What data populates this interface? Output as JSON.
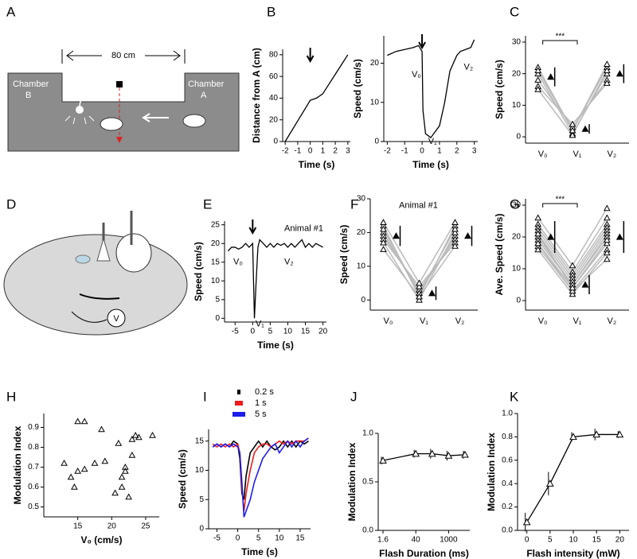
{
  "panel_labels": [
    "A",
    "B",
    "C",
    "D",
    "E",
    "F",
    "G",
    "H",
    "I",
    "J",
    "K"
  ],
  "diagram_a": {
    "distance": "80 cm",
    "chamber_b": [
      "Chamber",
      "B"
    ],
    "chamber_a": [
      "Chamber",
      "A"
    ]
  },
  "diagram_d": {
    "meter": "V"
  },
  "chart_data": [
    {
      "type": "line",
      "x_label": "Time (s)",
      "y_label": "Distance from A (cm)",
      "arrow_at": 0,
      "x": [
        -2,
        -1,
        0,
        0.5,
        1,
        1.5,
        2,
        2.5,
        3
      ],
      "values": [
        0,
        19,
        38,
        40,
        44,
        53,
        62,
        71,
        80
      ],
      "color": "#000000",
      "xlim": [
        -2.2,
        3.2
      ],
      "xticks": [
        -2,
        -1,
        0,
        1,
        2,
        3
      ],
      "ylim": [
        0,
        85
      ],
      "yticks": [
        0,
        20,
        40,
        60,
        80
      ]
    },
    {
      "type": "line",
      "x_label": "Time (s)",
      "y_label": "Speed (cm/s)",
      "arrow_at": 0,
      "annotations": [
        "V₀",
        "V₁",
        "V₂"
      ],
      "x": [
        -2,
        -1.5,
        -1,
        -0.5,
        -0.2,
        0,
        0.05,
        0.2,
        0.5,
        1,
        1.3,
        1.6,
        2,
        2.2,
        2.5,
        2.8,
        3
      ],
      "values": [
        22,
        23,
        23.5,
        24,
        24.5,
        23,
        8,
        2,
        1,
        4,
        10,
        18,
        22,
        23,
        23.5,
        24,
        26
      ],
      "color": "#000000",
      "xlim": [
        -2.2,
        3.2
      ],
      "xticks": [
        -2,
        -1,
        0,
        1,
        2,
        3
      ],
      "ylim": [
        0,
        27
      ],
      "yticks": [
        0,
        10,
        20
      ]
    },
    {
      "type": "dotplot",
      "y_label": "Speed (cm/s)",
      "significance": "***",
      "categories": [
        "V₀",
        "V₁",
        "V₂"
      ],
      "series": [
        {
          "values": [
            22,
            2,
            22
          ]
        },
        {
          "values": [
            20,
            1,
            20
          ]
        },
        {
          "values": [
            18,
            3,
            18
          ]
        },
        {
          "values": [
            16,
            4,
            17
          ]
        },
        {
          "values": [
            15,
            0.5,
            21
          ]
        },
        {
          "values": [
            21,
            2,
            23
          ]
        }
      ],
      "mean": [
        19,
        2.5,
        20
      ],
      "error": [
        3,
        1.5,
        3
      ],
      "color": "#000000",
      "line_color": "#bbbbbb",
      "ylim": [
        -2,
        32
      ],
      "yticks": [
        0,
        10,
        20,
        30
      ]
    },
    {
      "type": "line",
      "x_label": "Time (s)",
      "y_label": "Speed (cm/s)",
      "arrow_at": 0,
      "annotations": [
        "Animal #1",
        "V₀",
        "V₁",
        "V₂"
      ],
      "x": [
        -7,
        -6,
        -5,
        -4,
        -3,
        -2,
        -1,
        0,
        0.5,
        1,
        1.5,
        2,
        3,
        4,
        5,
        6,
        7,
        8,
        9,
        10,
        11,
        12,
        13,
        14,
        15,
        16,
        17,
        18,
        19,
        20
      ],
      "values": [
        18,
        19,
        19,
        18.5,
        19,
        20,
        19,
        20,
        0,
        10,
        19,
        21,
        20,
        19,
        20,
        19,
        20,
        19.5,
        20,
        19,
        20,
        19,
        20,
        21,
        19,
        20,
        19,
        20,
        19.5,
        19
      ],
      "color": "#000000",
      "xlim": [
        -8,
        21
      ],
      "xticks": [
        -5,
        0,
        5,
        10,
        15,
        20
      ],
      "ylim": [
        -1,
        26
      ],
      "yticks": [
        0,
        5,
        10,
        15,
        20,
        25
      ]
    },
    {
      "type": "dotplot",
      "y_label": "Speed (cm/s)",
      "annotations": [
        "Animal #1"
      ],
      "categories": [
        "V₀",
        "V₁",
        "V₂"
      ],
      "series": [
        {
          "values": [
            22,
            1,
            22
          ]
        },
        {
          "values": [
            20,
            2,
            19
          ]
        },
        {
          "values": [
            19,
            3,
            18
          ]
        },
        {
          "values": [
            18,
            4,
            17
          ]
        },
        {
          "values": [
            17,
            0,
            20
          ]
        },
        {
          "values": [
            23,
            5,
            23
          ]
        },
        {
          "values": [
            21,
            2,
            21
          ]
        },
        {
          "values": [
            15,
            1,
            16
          ]
        }
      ],
      "mean": [
        19,
        2,
        19
      ],
      "error": [
        3,
        2,
        3
      ],
      "color": "#000000",
      "line_color": "#bbbbbb",
      "ylim": [
        -3,
        30
      ],
      "yticks": [
        0,
        10,
        20,
        30
      ]
    },
    {
      "type": "dotplot",
      "y_label": "Ave. Speed (cm/s)",
      "significance": "***",
      "categories": [
        "V₀",
        "V₁",
        "V₂"
      ],
      "series": [
        {
          "values": [
            26,
            11,
            29
          ]
        },
        {
          "values": [
            24,
            9,
            26
          ]
        },
        {
          "values": [
            23,
            8,
            24
          ]
        },
        {
          "values": [
            22,
            7,
            23
          ]
        },
        {
          "values": [
            21,
            6,
            22
          ]
        },
        {
          "values": [
            20,
            5,
            21
          ]
        },
        {
          "values": [
            19,
            5,
            20
          ]
        },
        {
          "values": [
            18,
            4,
            18
          ]
        },
        {
          "values": [
            17,
            3,
            16
          ]
        },
        {
          "values": [
            16,
            2,
            15
          ]
        },
        {
          "values": [
            18,
            3,
            13
          ]
        },
        {
          "values": [
            21,
            4,
            19
          ]
        }
      ],
      "mean": [
        20,
        5,
        20
      ],
      "error": [
        5,
        3,
        5
      ],
      "color": "#000000",
      "line_color": "#bbbbbb",
      "ylim": [
        -3,
        32
      ],
      "yticks": [
        0,
        10,
        20,
        30
      ]
    },
    {
      "type": "scatter",
      "x_label": "V₀ (cm/s)",
      "y_label": "Modulation Index",
      "x": [
        13,
        14,
        14.5,
        15,
        15,
        16,
        16,
        17.5,
        18.5,
        19,
        20.5,
        21,
        21.5,
        21.5,
        22,
        22,
        22.5,
        23,
        23,
        23.5,
        24,
        26
      ],
      "values": [
        0.72,
        0.65,
        0.6,
        0.93,
        0.68,
        0.93,
        0.69,
        0.72,
        0.89,
        0.73,
        0.57,
        0.82,
        0.6,
        0.65,
        0.68,
        0.7,
        0.55,
        0.76,
        0.84,
        0.86,
        0.85,
        0.86
      ],
      "color": "#000000",
      "xlim": [
        10,
        27
      ],
      "xticks": [
        15,
        20,
        25
      ],
      "ylim": [
        0.45,
        0.97
      ],
      "yticks": [
        0.5,
        0.6,
        0.7,
        0.8,
        0.9
      ]
    },
    {
      "type": "line",
      "x_label": "Time (s)",
      "y_label": "Speed (cm/s)",
      "x": [
        -6,
        -5,
        -4,
        -3,
        -2,
        -1,
        0,
        0.5,
        1,
        1.5,
        2,
        3,
        4,
        5,
        6,
        7,
        8,
        9,
        10,
        11,
        12,
        13,
        14,
        15,
        16,
        17
      ],
      "series": [
        {
          "name": "0.2 s",
          "color": "#000000",
          "values": [
            14,
            14.5,
            14,
            14.5,
            14,
            15,
            14.5,
            12,
            6,
            5,
            9,
            13,
            14,
            15,
            14,
            15,
            14,
            13.5,
            14,
            15,
            14,
            15,
            14,
            15,
            14.5,
            15
          ]
        },
        {
          "name": "1 s",
          "color": "#ee1c1c",
          "values": [
            14.5,
            14,
            14.5,
            14,
            14.5,
            14,
            14.5,
            13,
            7,
            3,
            6,
            10,
            13,
            14,
            14.5,
            14.5,
            14,
            14.5,
            15,
            14.5,
            15,
            14.5,
            15,
            15,
            15,
            15.5
          ]
        },
        {
          "name": "5 s",
          "color": "#1c1cee",
          "values": [
            14,
            14.5,
            14,
            14.5,
            14,
            14.5,
            14,
            13,
            8,
            2,
            3,
            5,
            8,
            10,
            12,
            13,
            14,
            14.5,
            13,
            14,
            15,
            14,
            15,
            14,
            15,
            15.5
          ]
        }
      ],
      "xlim": [
        -7,
        17.5
      ],
      "xticks": [
        -5,
        0,
        5,
        10,
        15
      ],
      "ylim": [
        0,
        17
      ],
      "yticks": [
        0,
        5,
        10,
        15
      ]
    },
    {
      "type": "line",
      "x_label": "Flash Duration (ms)",
      "y_label": "Modulation Index",
      "xscale": "log",
      "markers": true,
      "x": [
        1.6,
        40,
        200,
        1000,
        5000
      ],
      "values": [
        0.72,
        0.79,
        0.79,
        0.77,
        0.78
      ],
      "errors": [
        0.04,
        0.04,
        0.05,
        0.05,
        0.04
      ],
      "color": "#000000",
      "xlim": [
        1,
        8000
      ],
      "xticks": [
        1.6,
        40,
        1000
      ],
      "ylim": [
        0,
        1
      ],
      "yticks": [
        {
          "value": 0,
          "label": "0.0"
        },
        {
          "value": 0.5,
          "label": "0.5"
        },
        {
          "value": 1,
          "label": "1.0"
        }
      ]
    },
    {
      "type": "line",
      "x_label": "Flash intensity (mW)",
      "y_label": "Modulation Index",
      "markers": true,
      "x": [
        0,
        5,
        10,
        15,
        20
      ],
      "values": [
        0.07,
        0.4,
        0.8,
        0.82,
        0.82
      ],
      "errors": [
        0.08,
        0.1,
        0.04,
        0.05,
        0.03
      ],
      "color": "#000000",
      "xlim": [
        -2,
        22
      ],
      "xticks": [
        0,
        5,
        10,
        15,
        20
      ],
      "ylim": [
        0,
        1
      ],
      "yticks": [
        {
          "value": 0,
          "label": "0.0"
        },
        {
          "value": 0.2,
          "label": "0.2"
        },
        {
          "value": 0.4,
          "label": "0.4"
        },
        {
          "value": 0.6,
          "label": "0.6"
        },
        {
          "value": 0.8,
          "label": "0.8"
        },
        {
          "value": 1,
          "label": "1.0"
        }
      ]
    }
  ]
}
